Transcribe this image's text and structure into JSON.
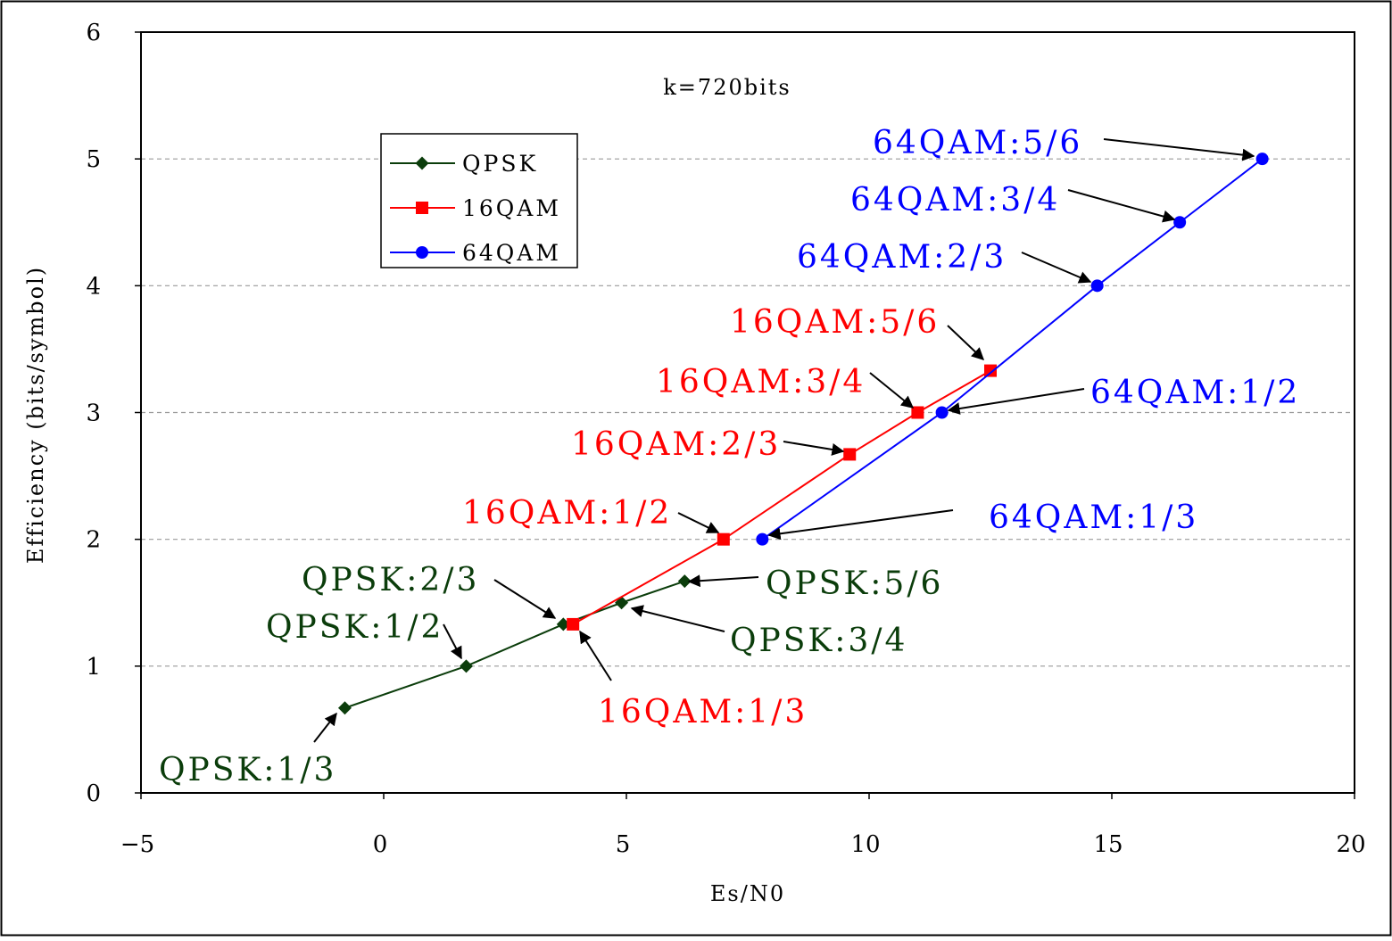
{
  "chart_data": {
    "type": "line",
    "annotation_title": "k=720bits",
    "xlabel": "Es/N0",
    "ylabel": "Efficiency (bits/symbol)",
    "xlim": [
      -5,
      20
    ],
    "ylim": [
      0,
      6
    ],
    "xticks": [
      -5,
      0,
      5,
      10,
      15,
      20
    ],
    "yticks": [
      0,
      1,
      2,
      3,
      4,
      5,
      6
    ],
    "grid": "horizontal-dashed",
    "legend_position": "upper-left",
    "series": [
      {
        "name": "QPSK",
        "color": "#0b3d0b",
        "marker": "diamond",
        "points": [
          {
            "x": -0.8,
            "y": 0.67,
            "label": "QPSK:1/3"
          },
          {
            "x": 1.7,
            "y": 1.0,
            "label": "QPSK:1/2"
          },
          {
            "x": 3.7,
            "y": 1.33,
            "label": "QPSK:2/3"
          },
          {
            "x": 4.9,
            "y": 1.5,
            "label": "QPSK:3/4"
          },
          {
            "x": 6.2,
            "y": 1.67,
            "label": "QPSK:5/6"
          }
        ]
      },
      {
        "name": "16QAM",
        "color": "#ff0000",
        "marker": "square",
        "points": [
          {
            "x": 3.9,
            "y": 1.33,
            "label": "16QAM:1/3"
          },
          {
            "x": 7.0,
            "y": 2.0,
            "label": "16QAM:1/2"
          },
          {
            "x": 9.6,
            "y": 2.67,
            "label": "16QAM:2/3"
          },
          {
            "x": 11.0,
            "y": 3.0,
            "label": "16QAM:3/4"
          },
          {
            "x": 12.5,
            "y": 3.33,
            "label": "16QAM:5/6"
          }
        ]
      },
      {
        "name": "64QAM",
        "color": "#0000ff",
        "marker": "circle",
        "points": [
          {
            "x": 7.8,
            "y": 2.0,
            "label": "64QAM:1/3"
          },
          {
            "x": 11.5,
            "y": 3.0,
            "label": "64QAM:1/2"
          },
          {
            "x": 14.7,
            "y": 4.0,
            "label": "64QAM:2/3"
          },
          {
            "x": 16.4,
            "y": 4.5,
            "label": "64QAM:3/4"
          },
          {
            "x": 18.1,
            "y": 5.0,
            "label": "64QAM:5/6"
          }
        ]
      }
    ]
  }
}
